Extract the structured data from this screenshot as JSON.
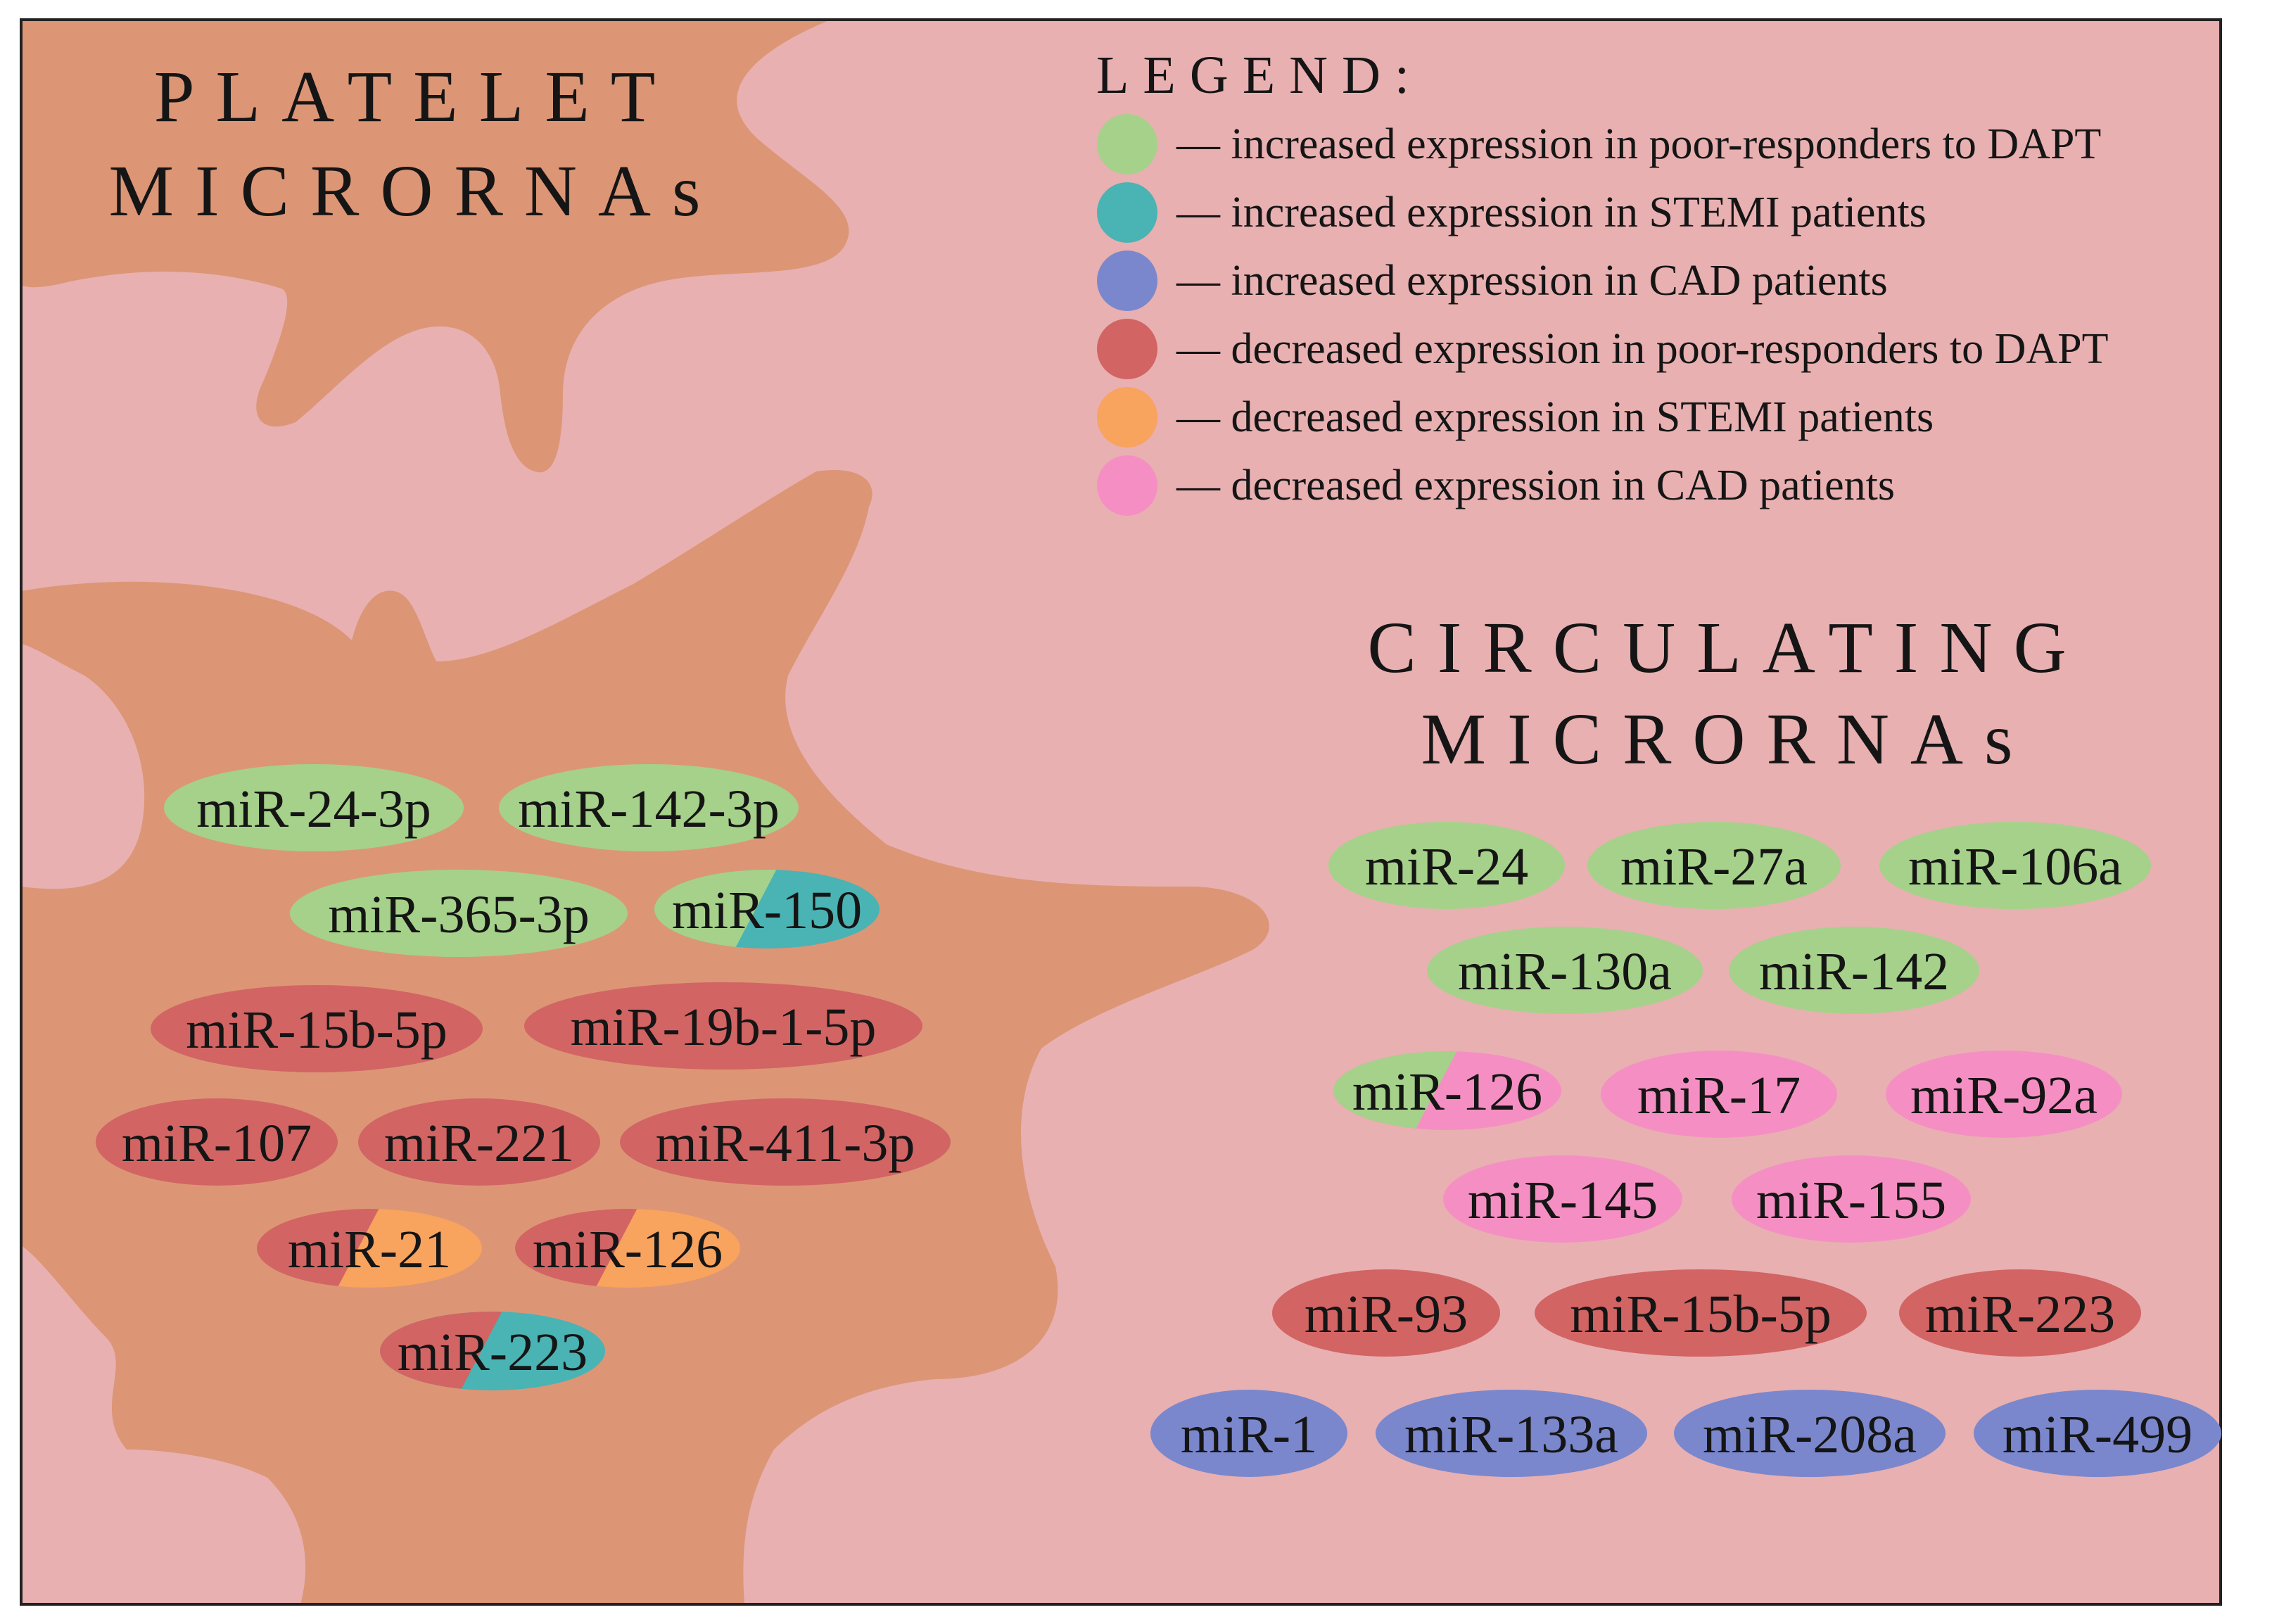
{
  "colors": {
    "background": "#e8b0b1",
    "cell": "#dc9676",
    "border": "#222222",
    "increased_poor_responders_dapt": "#a6d18a",
    "increased_stemi": "#4ab3b4",
    "increased_cad": "#7a87cc",
    "decreased_poor_responders_dapt": "#d26464",
    "decreased_stemi": "#f8a35e",
    "decreased_cad": "#f58fc3"
  },
  "titles": {
    "platelet_line1": "PLATELET",
    "platelet_line2": "MICRORNAs",
    "circulating_line1": "CIRCULATING",
    "circulating_line2": "MICRORNAs"
  },
  "legend": {
    "title": "LEGEND:",
    "items": [
      {
        "color_key": "increased_poor_responders_dapt",
        "label": "— increased expression in poor-responders to DAPT"
      },
      {
        "color_key": "increased_stemi",
        "label": "— increased expression in STEMI patients"
      },
      {
        "color_key": "increased_cad",
        "label": "— increased expression in CAD patients"
      },
      {
        "color_key": "decreased_poor_responders_dapt",
        "label": "— decreased expression in poor-responders to DAPT"
      },
      {
        "color_key": "decreased_stemi",
        "label": "— decreased expression in STEMI patients"
      },
      {
        "color_key": "decreased_cad",
        "label": "— decreased expression in CAD patients"
      }
    ]
  },
  "platelet_mirnas": [
    {
      "name": "miR-24-3p",
      "colors": [
        "increased_poor_responders_dapt"
      ]
    },
    {
      "name": "miR-142-3p",
      "colors": [
        "increased_poor_responders_dapt"
      ]
    },
    {
      "name": "miR-365-3p",
      "colors": [
        "increased_poor_responders_dapt"
      ]
    },
    {
      "name": "miR-150",
      "colors": [
        "increased_poor_responders_dapt",
        "increased_stemi"
      ]
    },
    {
      "name": "miR-15b-5p",
      "colors": [
        "decreased_poor_responders_dapt"
      ]
    },
    {
      "name": "miR-19b-1-5p",
      "colors": [
        "decreased_poor_responders_dapt"
      ]
    },
    {
      "name": "miR-107",
      "colors": [
        "decreased_poor_responders_dapt"
      ]
    },
    {
      "name": "miR-221",
      "colors": [
        "decreased_poor_responders_dapt"
      ]
    },
    {
      "name": "miR-411-3p",
      "colors": [
        "decreased_poor_responders_dapt"
      ]
    },
    {
      "name": "miR-21",
      "colors": [
        "decreased_poor_responders_dapt",
        "decreased_stemi"
      ]
    },
    {
      "name": "miR-126",
      "colors": [
        "decreased_poor_responders_dapt",
        "decreased_stemi"
      ]
    },
    {
      "name": "miR-223",
      "colors": [
        "decreased_poor_responders_dapt",
        "increased_stemi"
      ]
    }
  ],
  "circulating_mirnas": [
    {
      "name": "miR-24",
      "colors": [
        "increased_poor_responders_dapt"
      ]
    },
    {
      "name": "miR-27a",
      "colors": [
        "increased_poor_responders_dapt"
      ]
    },
    {
      "name": "miR-106a",
      "colors": [
        "increased_poor_responders_dapt"
      ]
    },
    {
      "name": "miR-130a",
      "colors": [
        "increased_poor_responders_dapt"
      ]
    },
    {
      "name": "miR-142",
      "colors": [
        "increased_poor_responders_dapt"
      ]
    },
    {
      "name": "miR-126",
      "colors": [
        "increased_poor_responders_dapt",
        "decreased_cad"
      ]
    },
    {
      "name": "miR-17",
      "colors": [
        "decreased_cad"
      ]
    },
    {
      "name": "miR-92a",
      "colors": [
        "decreased_cad"
      ]
    },
    {
      "name": "miR-145",
      "colors": [
        "decreased_cad"
      ]
    },
    {
      "name": "miR-155",
      "colors": [
        "decreased_cad"
      ]
    },
    {
      "name": "miR-93",
      "colors": [
        "decreased_poor_responders_dapt"
      ]
    },
    {
      "name": "miR-15b-5p",
      "colors": [
        "decreased_poor_responders_dapt"
      ]
    },
    {
      "name": "miR-223",
      "colors": [
        "decreased_poor_responders_dapt"
      ]
    },
    {
      "name": "miR-1",
      "colors": [
        "increased_cad"
      ]
    },
    {
      "name": "miR-133a",
      "colors": [
        "increased_cad"
      ]
    },
    {
      "name": "miR-208a",
      "colors": [
        "increased_cad"
      ]
    },
    {
      "name": "miR-499",
      "colors": [
        "increased_cad"
      ]
    }
  ]
}
